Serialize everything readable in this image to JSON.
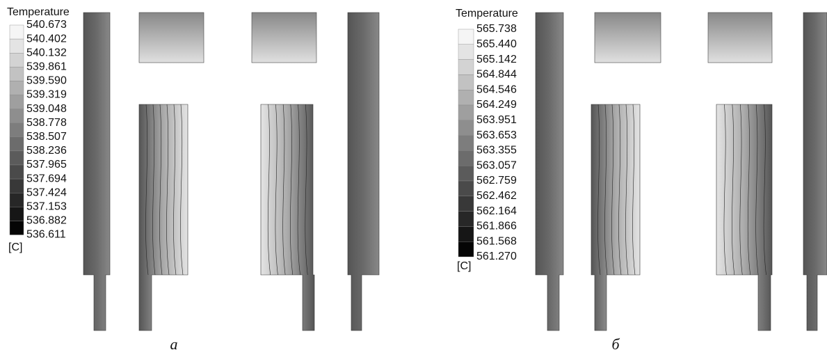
{
  "panels": [
    {
      "legend_title": "Temperature",
      "levels": [
        "540.673",
        "540.402",
        "540.132",
        "539.861",
        "539.590",
        "539.319",
        "539.048",
        "538.778",
        "538.507",
        "538.236",
        "537.965",
        "537.694",
        "537.424",
        "537.153",
        "536.882",
        "536.611"
      ],
      "unit": "[C]",
      "caption": "а"
    },
    {
      "legend_title": "Temperature",
      "levels": [
        "565.738",
        "565.440",
        "565.142",
        "564.844",
        "564.546",
        "564.249",
        "563.951",
        "563.653",
        "563.355",
        "563.057",
        "562.759",
        "562.462",
        "562.164",
        "561.866",
        "561.568",
        "561.270"
      ],
      "unit": "[C]",
      "caption": "б"
    }
  ]
}
